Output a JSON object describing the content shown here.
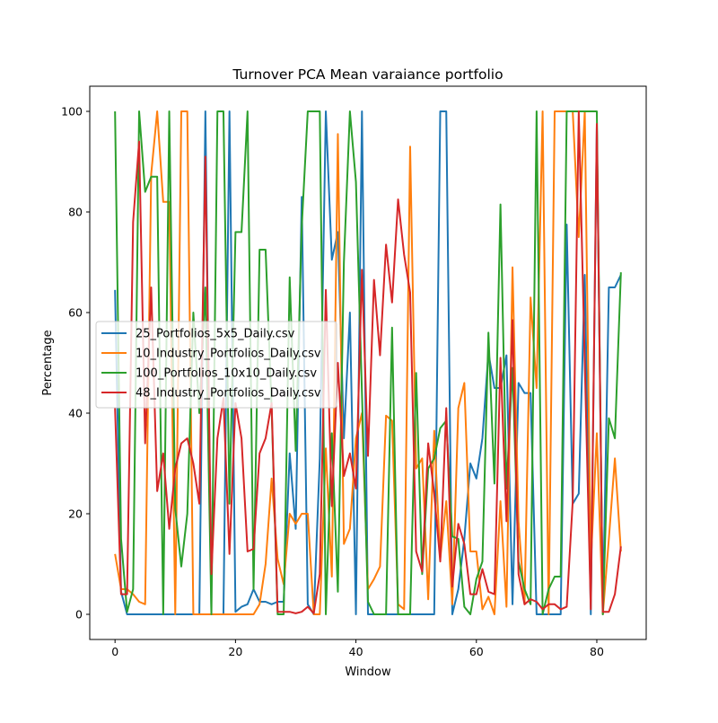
{
  "chart_data": {
    "type": "line",
    "title": "Turnover PCA Mean varaiance portfolio",
    "xlabel": "Window",
    "ylabel": "Percentage",
    "xlim": [
      -4.2,
      88.2
    ],
    "ylim": [
      -5,
      105
    ],
    "xticks": [
      0,
      20,
      40,
      60,
      80
    ],
    "yticks": [
      0,
      20,
      40,
      60,
      80,
      100
    ],
    "x_tick_labels": [
      "0",
      "20",
      "40",
      "60",
      "80"
    ],
    "y_tick_labels": [
      "0",
      "20",
      "40",
      "60",
      "80",
      "100"
    ],
    "grid": false,
    "legend_position": "center-left",
    "x": [
      0,
      1,
      2,
      3,
      4,
      5,
      6,
      7,
      8,
      9,
      10,
      11,
      12,
      13,
      14,
      15,
      16,
      17,
      18,
      19,
      20,
      21,
      22,
      23,
      24,
      25,
      26,
      27,
      28,
      29,
      30,
      31,
      32,
      33,
      34,
      35,
      36,
      37,
      38,
      39,
      40,
      41,
      42,
      43,
      44,
      45,
      46,
      47,
      48,
      49,
      50,
      51,
      52,
      53,
      54,
      55,
      56,
      57,
      58,
      59,
      60,
      61,
      62,
      63,
      64,
      65,
      66,
      67,
      68,
      69,
      70,
      71,
      72,
      73,
      74,
      75,
      76,
      77,
      78,
      79,
      80,
      81,
      82,
      83,
      84
    ],
    "series": [
      {
        "name": "25_Portfolios_5x5_Daily.csv",
        "color": "#1f77b4",
        "values": [
          64.5,
          4.5,
          0,
          0,
          0,
          0,
          0,
          0,
          0,
          0,
          0,
          0,
          0,
          0,
          0,
          100,
          0,
          0,
          0,
          100,
          0.5,
          1.5,
          2,
          5,
          2.5,
          2.5,
          2,
          2.5,
          2.5,
          32,
          17,
          83,
          2,
          0,
          31,
          100,
          70.5,
          76,
          35,
          60,
          0,
          100,
          0,
          0,
          0,
          0,
          0,
          0,
          0,
          0,
          0,
          0,
          0,
          0,
          100,
          100,
          0,
          5,
          15,
          30,
          27,
          35,
          52,
          45,
          45,
          51.5,
          2,
          46,
          44,
          44,
          0,
          0,
          0,
          0,
          0,
          77.5,
          22,
          24,
          67.5,
          0,
          97,
          0,
          65,
          65,
          67.5
        ]
      },
      {
        "name": "10_Industry_Portfolios_Daily.csv",
        "color": "#ff7f0e",
        "values": [
          12,
          5,
          5,
          4,
          2.5,
          2,
          87.5,
          100,
          82,
          82,
          0,
          100,
          100,
          0,
          0,
          0,
          0,
          0,
          0,
          0,
          0,
          0,
          0,
          0,
          2,
          10,
          27,
          11,
          6,
          20,
          18,
          20,
          20,
          0,
          0,
          33,
          7.5,
          95.5,
          14,
          17,
          35,
          40,
          5,
          7,
          9.5,
          39.5,
          38.5,
          2,
          1,
          93,
          29,
          31,
          3,
          36.5,
          11,
          22.5,
          2,
          41,
          46,
          12.5,
          12.5,
          1,
          3.5,
          0,
          22.5,
          1.5,
          69,
          18.5,
          2,
          63,
          45,
          100,
          0,
          100,
          100,
          100,
          100,
          75,
          100,
          10,
          36,
          0,
          15,
          31,
          12.5
        ]
      },
      {
        "name": "100_Portfolios_10x10_Daily.csv",
        "color": "#2ca02c",
        "values": [
          100,
          15,
          0.5,
          5,
          100,
          84,
          87,
          87,
          0,
          100,
          21,
          9.5,
          20,
          60,
          40,
          65,
          0,
          100,
          100,
          22,
          76,
          76,
          100,
          5,
          72.5,
          72.5,
          41,
          0,
          0,
          67,
          32.5,
          77,
          100,
          100,
          100,
          0,
          36,
          4.5,
          70,
          100,
          86,
          44,
          2.5,
          0,
          0,
          0,
          57,
          0,
          0,
          0,
          48,
          8,
          29,
          31,
          37,
          38.5,
          15.5,
          15,
          1.5,
          0,
          7,
          10.5,
          56,
          26,
          81.5,
          25,
          49,
          10.5,
          5,
          2,
          100,
          0,
          5,
          7.5,
          7.5,
          100,
          100,
          100,
          100,
          100,
          100,
          0,
          39,
          35,
          68
        ]
      },
      {
        "name": "48_Industry_Portfolios_Daily.csv",
        "color": "#d62728",
        "values": [
          41,
          4,
          4,
          78,
          94,
          34,
          65,
          24.5,
          32,
          17,
          29,
          34,
          35,
          30,
          22,
          91,
          8,
          35,
          43,
          12,
          42,
          35,
          12.5,
          13,
          32,
          35,
          42,
          0.5,
          0.5,
          0.5,
          0.2,
          0.5,
          1.5,
          0.2,
          8,
          64.5,
          21.5,
          50,
          27.5,
          32,
          25,
          68.5,
          31.5,
          66.5,
          51.5,
          73.5,
          62,
          82.5,
          71.5,
          64,
          12.5,
          8.5,
          34,
          24,
          10.5,
          41,
          5.5,
          18,
          14,
          4,
          4,
          9,
          4.5,
          4,
          51,
          18.5,
          58.5,
          8,
          2,
          3,
          2.5,
          1,
          2,
          2,
          1,
          1.5,
          22.5,
          100,
          50,
          1,
          97.5,
          0.5,
          0.5,
          4,
          13.5
        ]
      }
    ]
  }
}
